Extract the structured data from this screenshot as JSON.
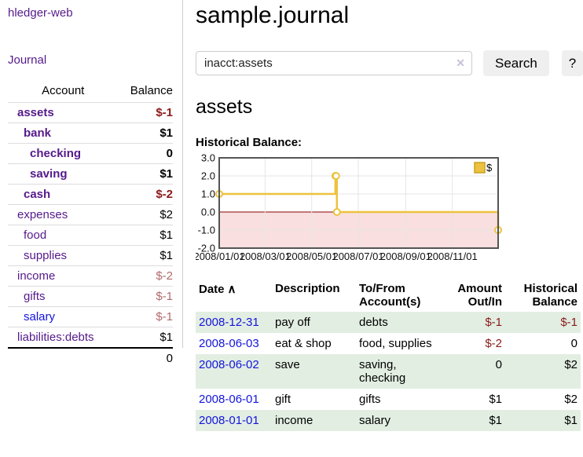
{
  "app": {
    "title": "hledger-web",
    "nav_journal": "Journal"
  },
  "sidebar": {
    "header": {
      "account": "Account",
      "balance": "Balance"
    },
    "accounts": [
      {
        "name": "assets",
        "depth": 1,
        "in_filter": true,
        "link_color": "purple",
        "balance": "$-1",
        "balance_style": "neg-strong"
      },
      {
        "name": "bank",
        "depth": 2,
        "in_filter": true,
        "link_color": "purple",
        "balance": "$1",
        "balance_style": "normal"
      },
      {
        "name": "checking",
        "depth": 3,
        "in_filter": true,
        "link_color": "purple",
        "balance": "0",
        "balance_style": "normal"
      },
      {
        "name": "saving",
        "depth": 3,
        "in_filter": true,
        "link_color": "purple",
        "balance": "$1",
        "balance_style": "normal"
      },
      {
        "name": "cash",
        "depth": 2,
        "in_filter": true,
        "link_color": "purple",
        "balance": "$-2",
        "balance_style": "neg-strong"
      },
      {
        "name": "expenses",
        "depth": 1,
        "in_filter": false,
        "link_color": "purple",
        "balance": "$2",
        "balance_style": "normal"
      },
      {
        "name": "food",
        "depth": 2,
        "in_filter": false,
        "link_color": "purple",
        "balance": "$1",
        "balance_style": "normal"
      },
      {
        "name": "supplies",
        "depth": 2,
        "in_filter": false,
        "link_color": "purple",
        "balance": "$1",
        "balance_style": "normal"
      },
      {
        "name": "income",
        "depth": 1,
        "in_filter": false,
        "link_color": "purple",
        "balance": "$-2",
        "balance_style": "neg-muted"
      },
      {
        "name": "gifts",
        "depth": 2,
        "in_filter": false,
        "link_color": "purple",
        "balance": "$-1",
        "balance_style": "neg-muted"
      },
      {
        "name": "salary",
        "depth": 2,
        "in_filter": false,
        "link_color": "blue",
        "balance": "$-1",
        "balance_style": "neg-muted"
      },
      {
        "name": "liabilities:debts",
        "depth": 1,
        "in_filter": false,
        "link_color": "purple",
        "balance": "$1",
        "balance_style": "normal"
      }
    ],
    "total": "0"
  },
  "main": {
    "title": "sample.journal",
    "search": {
      "value": "inacct:assets",
      "clear_icon": "✕",
      "button_label": "Search",
      "help_label": "?"
    },
    "account_heading": "assets"
  },
  "chart_data": {
    "type": "line",
    "title": "Historical Balance:",
    "step": true,
    "series": [
      {
        "name": "$",
        "color": "#edc240",
        "points": [
          {
            "date": "2008-01-01",
            "value": 1
          },
          {
            "date": "2008-06-01",
            "value": 2
          },
          {
            "date": "2008-06-02",
            "value": 2
          },
          {
            "date": "2008-06-03",
            "value": 0
          },
          {
            "date": "2008-12-31",
            "value": -1
          }
        ]
      }
    ],
    "x_range": [
      "2008-01-01",
      "2008-12-31"
    ],
    "x_ticks": [
      {
        "date": "2008-01-01",
        "label": "2008/01/01"
      },
      {
        "date": "2008-03-01",
        "label": "2008/03/01"
      },
      {
        "date": "2008-05-01",
        "label": "2008/05/01"
      },
      {
        "date": "2008-07-01",
        "label": "2008/07/01"
      },
      {
        "date": "2008-09-01",
        "label": "2008/09/01"
      },
      {
        "date": "2008-11-01",
        "label": "2008/11/01"
      }
    ],
    "y_ticks": [
      "3.0",
      "2.0",
      "1.0",
      "0.0",
      "-1.0",
      "-2.0"
    ],
    "ylim": [
      -2,
      3
    ],
    "grid": true,
    "legend": {
      "label": "$",
      "position": "top-right"
    },
    "colors": {
      "line": "#edc240",
      "legend_border": "#c9a21d",
      "negative_region": "#f9dfdf",
      "zero_line": "#8b0000",
      "gridline": "#e6e6e6",
      "border": "#545454"
    }
  },
  "register": {
    "sort_icon": "∧",
    "headers": [
      {
        "label": "Date",
        "align": "left",
        "sortable": true
      },
      {
        "label": "Description",
        "align": "left",
        "sortable": false
      },
      {
        "label": "To/From Account(s)",
        "align": "left",
        "sortable": false
      },
      {
        "label": "Amount Out/In",
        "align": "right",
        "sortable": false
      },
      {
        "label": "Historical Balance",
        "align": "right",
        "sortable": false
      }
    ],
    "rows": [
      {
        "date": "2008-12-31",
        "description": "pay off",
        "accounts": "debts",
        "amount": "$-1",
        "amount_neg": true,
        "balance": "$-1",
        "balance_neg": true
      },
      {
        "date": "2008-06-03",
        "description": "eat & shop",
        "accounts": "food, supplies",
        "amount": "$-2",
        "amount_neg": true,
        "balance": "0",
        "balance_neg": false
      },
      {
        "date": "2008-06-02",
        "description": "save",
        "accounts": "saving, checking",
        "amount": "0",
        "amount_neg": false,
        "balance": "$2",
        "balance_neg": false
      },
      {
        "date": "2008-06-01",
        "description": "gift",
        "accounts": "gifts",
        "amount": "$1",
        "amount_neg": false,
        "balance": "$2",
        "balance_neg": false
      },
      {
        "date": "2008-01-01",
        "description": "income",
        "accounts": "salary",
        "amount": "$1",
        "amount_neg": false,
        "balance": "$1",
        "balance_neg": false
      }
    ]
  }
}
